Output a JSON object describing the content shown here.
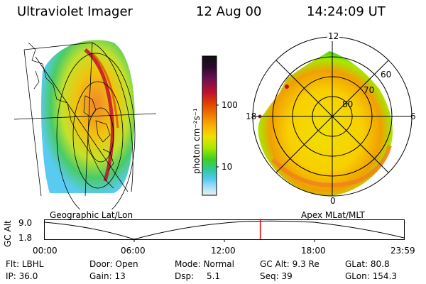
{
  "header": {
    "instrument": "Ultraviolet Imager",
    "date": "12 Aug 00",
    "time": "14:24:09 UT"
  },
  "geo_panel": {
    "label": "Geographic Lat/Lon"
  },
  "colorbar": {
    "unit_label": "photon cm⁻²s⁻¹",
    "ticks": [
      "100",
      "10"
    ],
    "colors": [
      "#101010",
      "#2a0a30",
      "#6a1050",
      "#c01030",
      "#e04000",
      "#f07800",
      "#f8b000",
      "#f0e000",
      "#a8e800",
      "#40d020",
      "#30c8a0",
      "#50c8f0",
      "#a0e0f8",
      "#f0f0f0"
    ]
  },
  "polar_panel": {
    "label": "Apex MLat/MLT",
    "mlt_labels": [
      "12",
      "18",
      "6",
      "0"
    ],
    "mlat_labels": [
      "60",
      "70",
      "80"
    ]
  },
  "timeline": {
    "axis_label": "GC Alt",
    "y_ticks": [
      "9.0",
      "1.8"
    ],
    "x_ticks": [
      "00:00",
      "06:00",
      "12:00",
      "18:00",
      "23:59"
    ],
    "marker_time_fraction": 0.6
  },
  "info": {
    "row1": [
      {
        "label": "Flt:",
        "value": "LBHL"
      },
      {
        "label": "Door:",
        "value": "Open"
      },
      {
        "label": "Mode:",
        "value": "Normal"
      },
      {
        "label": "GC Alt:",
        "value": "9.3 Re"
      },
      {
        "label": "GLat:",
        "value": "80.8"
      }
    ],
    "row2": [
      {
        "label": "IP:",
        "value": "36.0"
      },
      {
        "label": "Gain:",
        "value": "13"
      },
      {
        "label": "Dsp:",
        "value": "5.1"
      },
      {
        "label": "Seq:",
        "value": "39"
      },
      {
        "label": "GLon:",
        "value": "154.3"
      }
    ]
  }
}
